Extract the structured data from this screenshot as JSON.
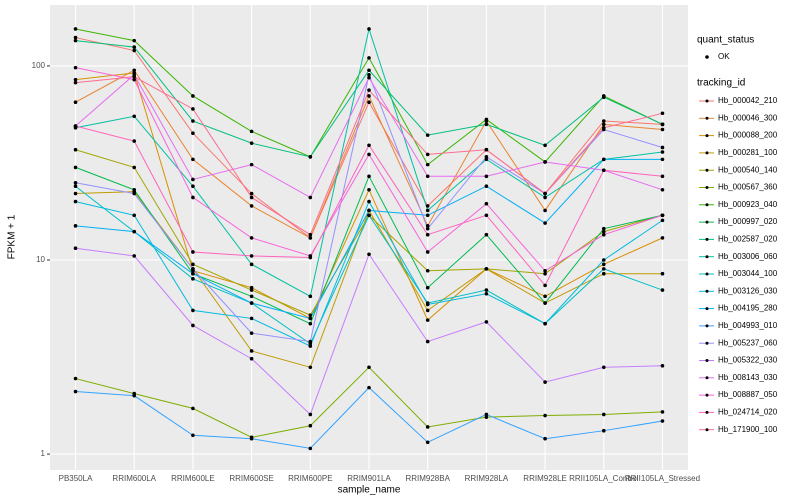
{
  "chart_data": {
    "type": "line",
    "x_label": "sample_name",
    "y_label": "FPKM + 1",
    "log_y": true,
    "grid": true,
    "categories": [
      "PB350LA",
      "RRIM600LA",
      "RRIM600LE",
      "RRIM600SE",
      "RRIM600PE",
      "RRIM901LA",
      "RRIM928BA",
      "RRIM928LA",
      "RRIM928LE",
      "RRII105LA_Control",
      "RRII105LA_Stressed"
    ],
    "ylim": [
      0.828,
      206
    ],
    "yticks": [
      1,
      10,
      100
    ],
    "shape_legend": {
      "title": "quant_status",
      "items": [
        "OK"
      ]
    },
    "legend_title": "tracking_id",
    "series": [
      {
        "name": "Hb_000042_210",
        "color": "#F8766D",
        "values": [
          140,
          120,
          45,
          22,
          13,
          65,
          19,
          37,
          22,
          52,
          50
        ]
      },
      {
        "name": "Hb_000046_300",
        "color": "#EA8331",
        "values": [
          65,
          95,
          33,
          19,
          13,
          70,
          15,
          52,
          18,
          50,
          47
        ]
      },
      {
        "name": "Hb_000088_200",
        "color": "#D89000",
        "values": [
          85,
          92,
          8.8,
          7.2,
          5,
          23,
          4.9,
          9,
          6.5,
          9.5,
          13
        ]
      },
      {
        "name": "Hb_000281_100",
        "color": "#C09B00",
        "values": [
          22,
          22.5,
          9,
          3.4,
          2.8,
          18,
          5.5,
          9,
          6,
          8.5,
          8.5
        ]
      },
      {
        "name": "Hb_000540_140",
        "color": "#A3A500",
        "values": [
          37,
          30,
          9.5,
          7,
          5.2,
          17,
          8.8,
          9,
          8.5,
          14,
          17
        ]
      },
      {
        "name": "Hb_000567_360",
        "color": "#7CAE00",
        "values": [
          2.45,
          2.05,
          1.72,
          1.22,
          1.4,
          2.8,
          1.38,
          1.55,
          1.58,
          1.6,
          1.65
        ]
      },
      {
        "name": "Hb_000923_040",
        "color": "#39B600",
        "values": [
          155,
          135,
          70,
          46,
          34,
          110,
          31,
          53,
          32,
          70,
          50
        ]
      },
      {
        "name": "Hb_000997_020",
        "color": "#00BB4E",
        "values": [
          30,
          23,
          8.5,
          6.5,
          4.7,
          27,
          7.2,
          13.5,
          6,
          14.5,
          17
        ]
      },
      {
        "name": "Hb_002587_020",
        "color": "#00BF7D",
        "values": [
          135,
          125,
          52,
          40,
          34,
          95,
          44,
          50,
          39,
          69,
          50
        ]
      },
      {
        "name": "Hb_003006_060",
        "color": "#00C1A3",
        "values": [
          48,
          55,
          24,
          9.5,
          6.5,
          155,
          18,
          33,
          21,
          33,
          36
        ]
      },
      {
        "name": "Hb_003044_100",
        "color": "#00BFC4",
        "values": [
          24,
          14,
          8,
          6,
          3.7,
          17,
          6,
          7,
          4.7,
          9,
          7
        ]
      },
      {
        "name": "Hb_003126_030",
        "color": "#00BAE0",
        "values": [
          20,
          17,
          5.5,
          5,
          3.6,
          20,
          5.9,
          6.7,
          4.7,
          10,
          16
        ]
      },
      {
        "name": "Hb_004195_280",
        "color": "#00B0F6",
        "values": [
          15,
          14,
          8.5,
          6,
          5,
          18,
          17,
          24,
          15.5,
          33,
          33
        ]
      },
      {
        "name": "Hb_004993_010",
        "color": "#35A2FF",
        "values": [
          2.1,
          2.0,
          1.25,
          1.2,
          1.07,
          2.2,
          1.15,
          1.6,
          1.2,
          1.32,
          1.48
        ]
      },
      {
        "name": "Hb_005237_060",
        "color": "#9590FF",
        "values": [
          25,
          22,
          9,
          4.2,
          3.8,
          90,
          14.5,
          34,
          22,
          47,
          38
        ]
      },
      {
        "name": "Hb_005322_030",
        "color": "#C77CFF",
        "values": [
          11.5,
          10.5,
          4.6,
          3.1,
          1.6,
          10.7,
          3.8,
          4.8,
          2.35,
          2.8,
          2.85
        ]
      },
      {
        "name": "Hb_008143_030",
        "color": "#E76BF3",
        "values": [
          49,
          90,
          26,
          31,
          21,
          87,
          27,
          27,
          32,
          29,
          23
        ]
      },
      {
        "name": "Hb_008887_050",
        "color": "#FA62DB",
        "values": [
          98,
          85,
          21,
          13,
          10.5,
          35,
          11,
          19.5,
          8.8,
          13.5,
          17
        ]
      },
      {
        "name": "Hb_024714_020",
        "color": "#FF62BC",
        "values": [
          49,
          41,
          11,
          10.5,
          10.3,
          39,
          13.5,
          17,
          7.4,
          29,
          27
        ]
      },
      {
        "name": "Hb_171900_100",
        "color": "#FF6C91",
        "values": [
          82,
          88,
          60,
          21,
          13.5,
          75,
          35,
          37,
          22,
          48,
          57
        ]
      }
    ]
  }
}
